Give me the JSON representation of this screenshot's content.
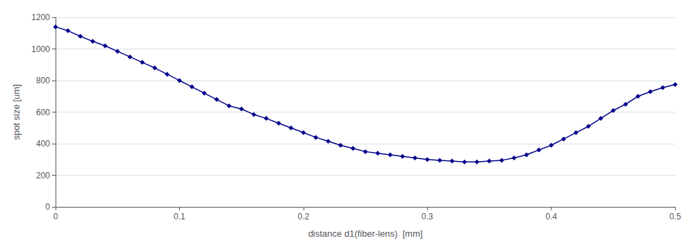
{
  "chart_data": {
    "type": "line",
    "xlabel": "distance d1(fiber-lens)  [mm]",
    "ylabel": "spot size [um]",
    "x": [
      0.0,
      0.01,
      0.02,
      0.03,
      0.04,
      0.05,
      0.06,
      0.07,
      0.08,
      0.09,
      0.1,
      0.11,
      0.12,
      0.13,
      0.14,
      0.15,
      0.16,
      0.17,
      0.18,
      0.19,
      0.2,
      0.21,
      0.22,
      0.23,
      0.24,
      0.25,
      0.26,
      0.27,
      0.28,
      0.29,
      0.3,
      0.31,
      0.32,
      0.33,
      0.34,
      0.35,
      0.36,
      0.37,
      0.38,
      0.39,
      0.4,
      0.41,
      0.42,
      0.43,
      0.44,
      0.45,
      0.46,
      0.47,
      0.48,
      0.49,
      0.5
    ],
    "values": [
      1140,
      1115,
      1080,
      1048,
      1020,
      985,
      950,
      915,
      880,
      840,
      800,
      760,
      720,
      680,
      640,
      620,
      585,
      560,
      530,
      500,
      470,
      440,
      415,
      390,
      370,
      350,
      340,
      330,
      320,
      310,
      300,
      295,
      290,
      285,
      285,
      290,
      295,
      310,
      330,
      360,
      390,
      430,
      470,
      510,
      560,
      610,
      650,
      700,
      730,
      755,
      775
    ],
    "xlim": [
      0,
      0.5
    ],
    "ylim": [
      0,
      1200
    ],
    "xticks": [
      0,
      0.1,
      0.2,
      0.3,
      0.4,
      0.5
    ],
    "yticks": [
      0,
      200,
      400,
      600,
      800,
      1000,
      1200
    ],
    "color": "#00008B",
    "marker": "diamond",
    "grid": "y"
  }
}
